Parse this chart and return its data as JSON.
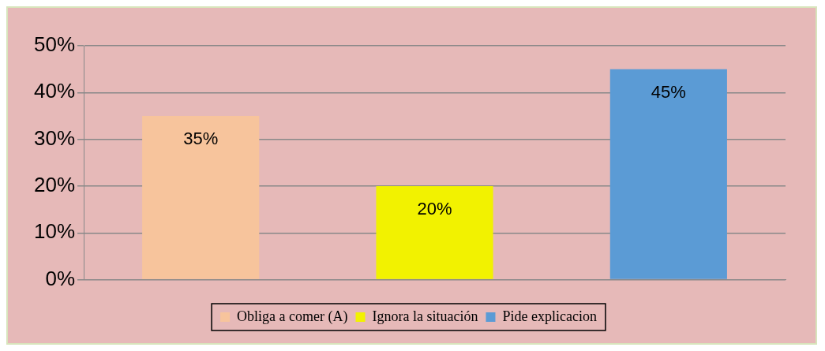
{
  "chart_data": {
    "type": "bar",
    "categories": [
      null,
      null,
      null
    ],
    "series": [
      {
        "name": "Obliga a comer (A)",
        "color": "#f7c49c",
        "values": [
          35,
          null,
          null
        ]
      },
      {
        "name": "Ignora la situación",
        "color": "#f2f200",
        "values": [
          null,
          20,
          null
        ]
      },
      {
        "name": "Pide explicacion",
        "color": "#5b9bd5",
        "values": [
          null,
          null,
          45
        ]
      }
    ],
    "ylim": [
      0,
      50
    ],
    "yticks": [
      {
        "value": 0,
        "label": "0%"
      },
      {
        "value": 10,
        "label": "10%"
      },
      {
        "value": 20,
        "label": "20%"
      },
      {
        "value": 30,
        "label": "30%"
      },
      {
        "value": 40,
        "label": "40%"
      },
      {
        "value": 50,
        "label": "50%"
      }
    ],
    "grid": "y",
    "legend": "bottom",
    "value_labels": [
      "35%",
      "20%",
      "45%"
    ]
  }
}
